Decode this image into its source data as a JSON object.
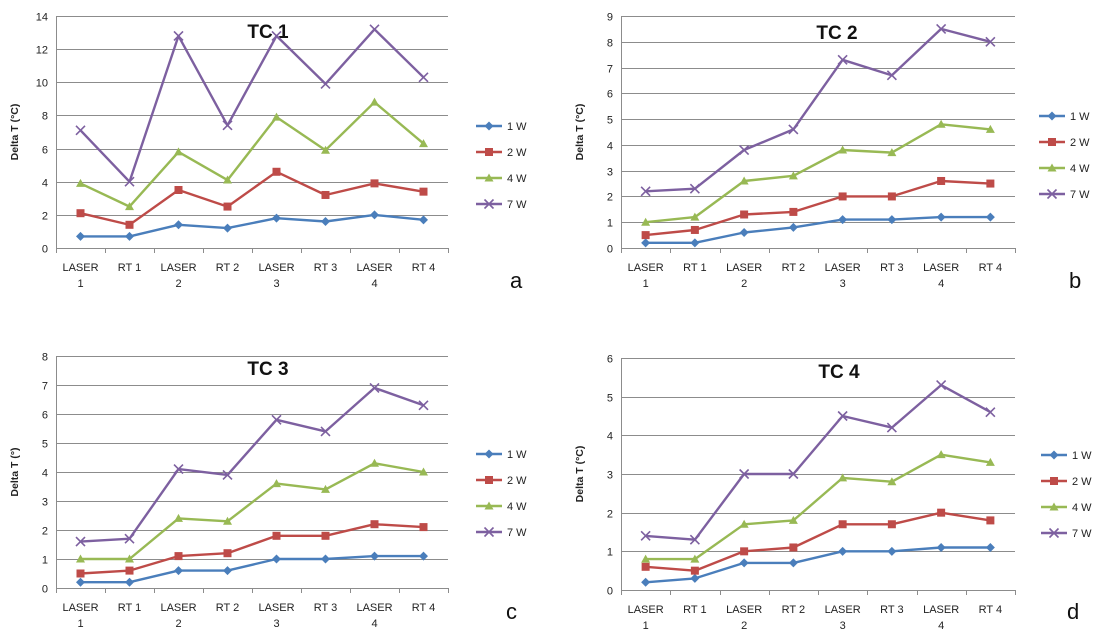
{
  "x_tick_lines": [
    [
      "LASER",
      "1"
    ],
    [
      "RT 1"
    ],
    [
      "LASER",
      "2"
    ],
    [
      "RT 2"
    ],
    [
      "LASER",
      "3"
    ],
    [
      "RT 3"
    ],
    [
      "LASER",
      "4"
    ],
    [
      "RT 4"
    ]
  ],
  "chart_data": [
    {
      "type": "line",
      "title": "TC 1",
      "panel_letter": "a",
      "ylabel": "Delta T (°C)",
      "xlabel": "",
      "categories": [
        "LASER 1",
        "RT 1",
        "LASER 2",
        "RT 2",
        "LASER 3",
        "RT 3",
        "LASER 4",
        "RT 4"
      ],
      "ylim": [
        0,
        14
      ],
      "yticks": [
        0,
        2,
        4,
        6,
        8,
        10,
        12,
        14
      ],
      "grid": true,
      "legend": "right",
      "series": [
        {
          "name": "1 W",
          "color": "#4a7ebb",
          "marker": "diamond",
          "values": [
            0.7,
            0.7,
            1.4,
            1.2,
            1.8,
            1.6,
            2.0,
            1.7
          ]
        },
        {
          "name": "2 W",
          "color": "#be4b48",
          "marker": "square",
          "values": [
            2.1,
            1.4,
            3.5,
            2.5,
            4.6,
            3.2,
            3.9,
            3.4
          ]
        },
        {
          "name": "4 W",
          "color": "#98b954",
          "marker": "triangle",
          "values": [
            3.9,
            2.5,
            5.8,
            4.1,
            7.9,
            5.9,
            8.8,
            6.3
          ]
        },
        {
          "name": "7 W",
          "color": "#7d60a0",
          "marker": "x",
          "values": [
            7.1,
            4.0,
            12.8,
            7.4,
            12.8,
            9.9,
            13.2,
            10.3
          ]
        }
      ]
    },
    {
      "type": "line",
      "title": "TC 2",
      "panel_letter": "b",
      "ylabel": "Delta T (°C)",
      "xlabel": "",
      "categories": [
        "LASER 1",
        "RT 1",
        "LASER 2",
        "RT 2",
        "LASER 3",
        "RT 3",
        "LASER 4",
        "RT 4"
      ],
      "ylim": [
        0,
        9
      ],
      "yticks": [
        0,
        1,
        2,
        3,
        4,
        5,
        6,
        7,
        8,
        9
      ],
      "grid": true,
      "legend": "right",
      "series": [
        {
          "name": "1 W",
          "color": "#4a7ebb",
          "marker": "diamond",
          "values": [
            0.2,
            0.2,
            0.6,
            0.8,
            1.1,
            1.1,
            1.2,
            1.2
          ]
        },
        {
          "name": "2 W",
          "color": "#be4b48",
          "marker": "square",
          "values": [
            0.5,
            0.7,
            1.3,
            1.4,
            2.0,
            2.0,
            2.6,
            2.5
          ]
        },
        {
          "name": "4 W",
          "color": "#98b954",
          "marker": "triangle",
          "values": [
            1.0,
            1.2,
            2.6,
            2.8,
            3.8,
            3.7,
            4.8,
            4.6
          ]
        },
        {
          "name": "7 W",
          "color": "#7d60a0",
          "marker": "x",
          "values": [
            2.2,
            2.3,
            3.8,
            4.6,
            7.3,
            6.7,
            8.5,
            8.0
          ]
        }
      ]
    },
    {
      "type": "line",
      "title": "TC 3",
      "panel_letter": "c",
      "ylabel": "Delta T (°)",
      "xlabel": "",
      "categories": [
        "LASER 1",
        "RT 1",
        "LASER 2",
        "RT 2",
        "LASER 3",
        "RT 3",
        "LASER 4",
        "RT 4"
      ],
      "ylim": [
        0,
        8
      ],
      "yticks": [
        0,
        1,
        2,
        3,
        4,
        5,
        6,
        7,
        8
      ],
      "grid": true,
      "legend": "right",
      "series": [
        {
          "name": "1 W",
          "color": "#4a7ebb",
          "marker": "diamond",
          "values": [
            0.2,
            0.2,
            0.6,
            0.6,
            1.0,
            1.0,
            1.1,
            1.1
          ]
        },
        {
          "name": "2 W",
          "color": "#be4b48",
          "marker": "square",
          "values": [
            0.5,
            0.6,
            1.1,
            1.2,
            1.8,
            1.8,
            2.2,
            2.1
          ]
        },
        {
          "name": "4 W",
          "color": "#98b954",
          "marker": "triangle",
          "values": [
            1.0,
            1.0,
            2.4,
            2.3,
            3.6,
            3.4,
            4.3,
            4.0
          ]
        },
        {
          "name": "7 W",
          "color": "#7d60a0",
          "marker": "x",
          "values": [
            1.6,
            1.7,
            4.1,
            3.9,
            5.8,
            5.4,
            6.9,
            6.3
          ]
        }
      ]
    },
    {
      "type": "line",
      "title": "TC 4",
      "panel_letter": "d",
      "ylabel": "Delta T (°C)",
      "xlabel": "",
      "categories": [
        "LASER 1",
        "RT 1",
        "LASER 2",
        "RT 2",
        "LASER 3",
        "RT 3",
        "LASER 4",
        "RT 4"
      ],
      "ylim": [
        0,
        6
      ],
      "yticks": [
        0,
        1,
        2,
        3,
        4,
        5,
        6
      ],
      "grid": true,
      "legend": "right",
      "series": [
        {
          "name": "1 W",
          "color": "#4a7ebb",
          "marker": "diamond",
          "values": [
            0.2,
            0.3,
            0.7,
            0.7,
            1.0,
            1.0,
            1.1,
            1.1
          ]
        },
        {
          "name": "2 W",
          "color": "#be4b48",
          "marker": "square",
          "values": [
            0.6,
            0.5,
            1.0,
            1.1,
            1.7,
            1.7,
            2.0,
            1.8
          ]
        },
        {
          "name": "4 W",
          "color": "#98b954",
          "marker": "triangle",
          "values": [
            0.8,
            0.8,
            1.7,
            1.8,
            2.9,
            2.8,
            3.5,
            3.3
          ]
        },
        {
          "name": "7 W",
          "color": "#7d60a0",
          "marker": "x",
          "values": [
            1.4,
            1.3,
            3.0,
            3.0,
            4.5,
            4.2,
            5.3,
            4.6
          ]
        }
      ]
    }
  ]
}
